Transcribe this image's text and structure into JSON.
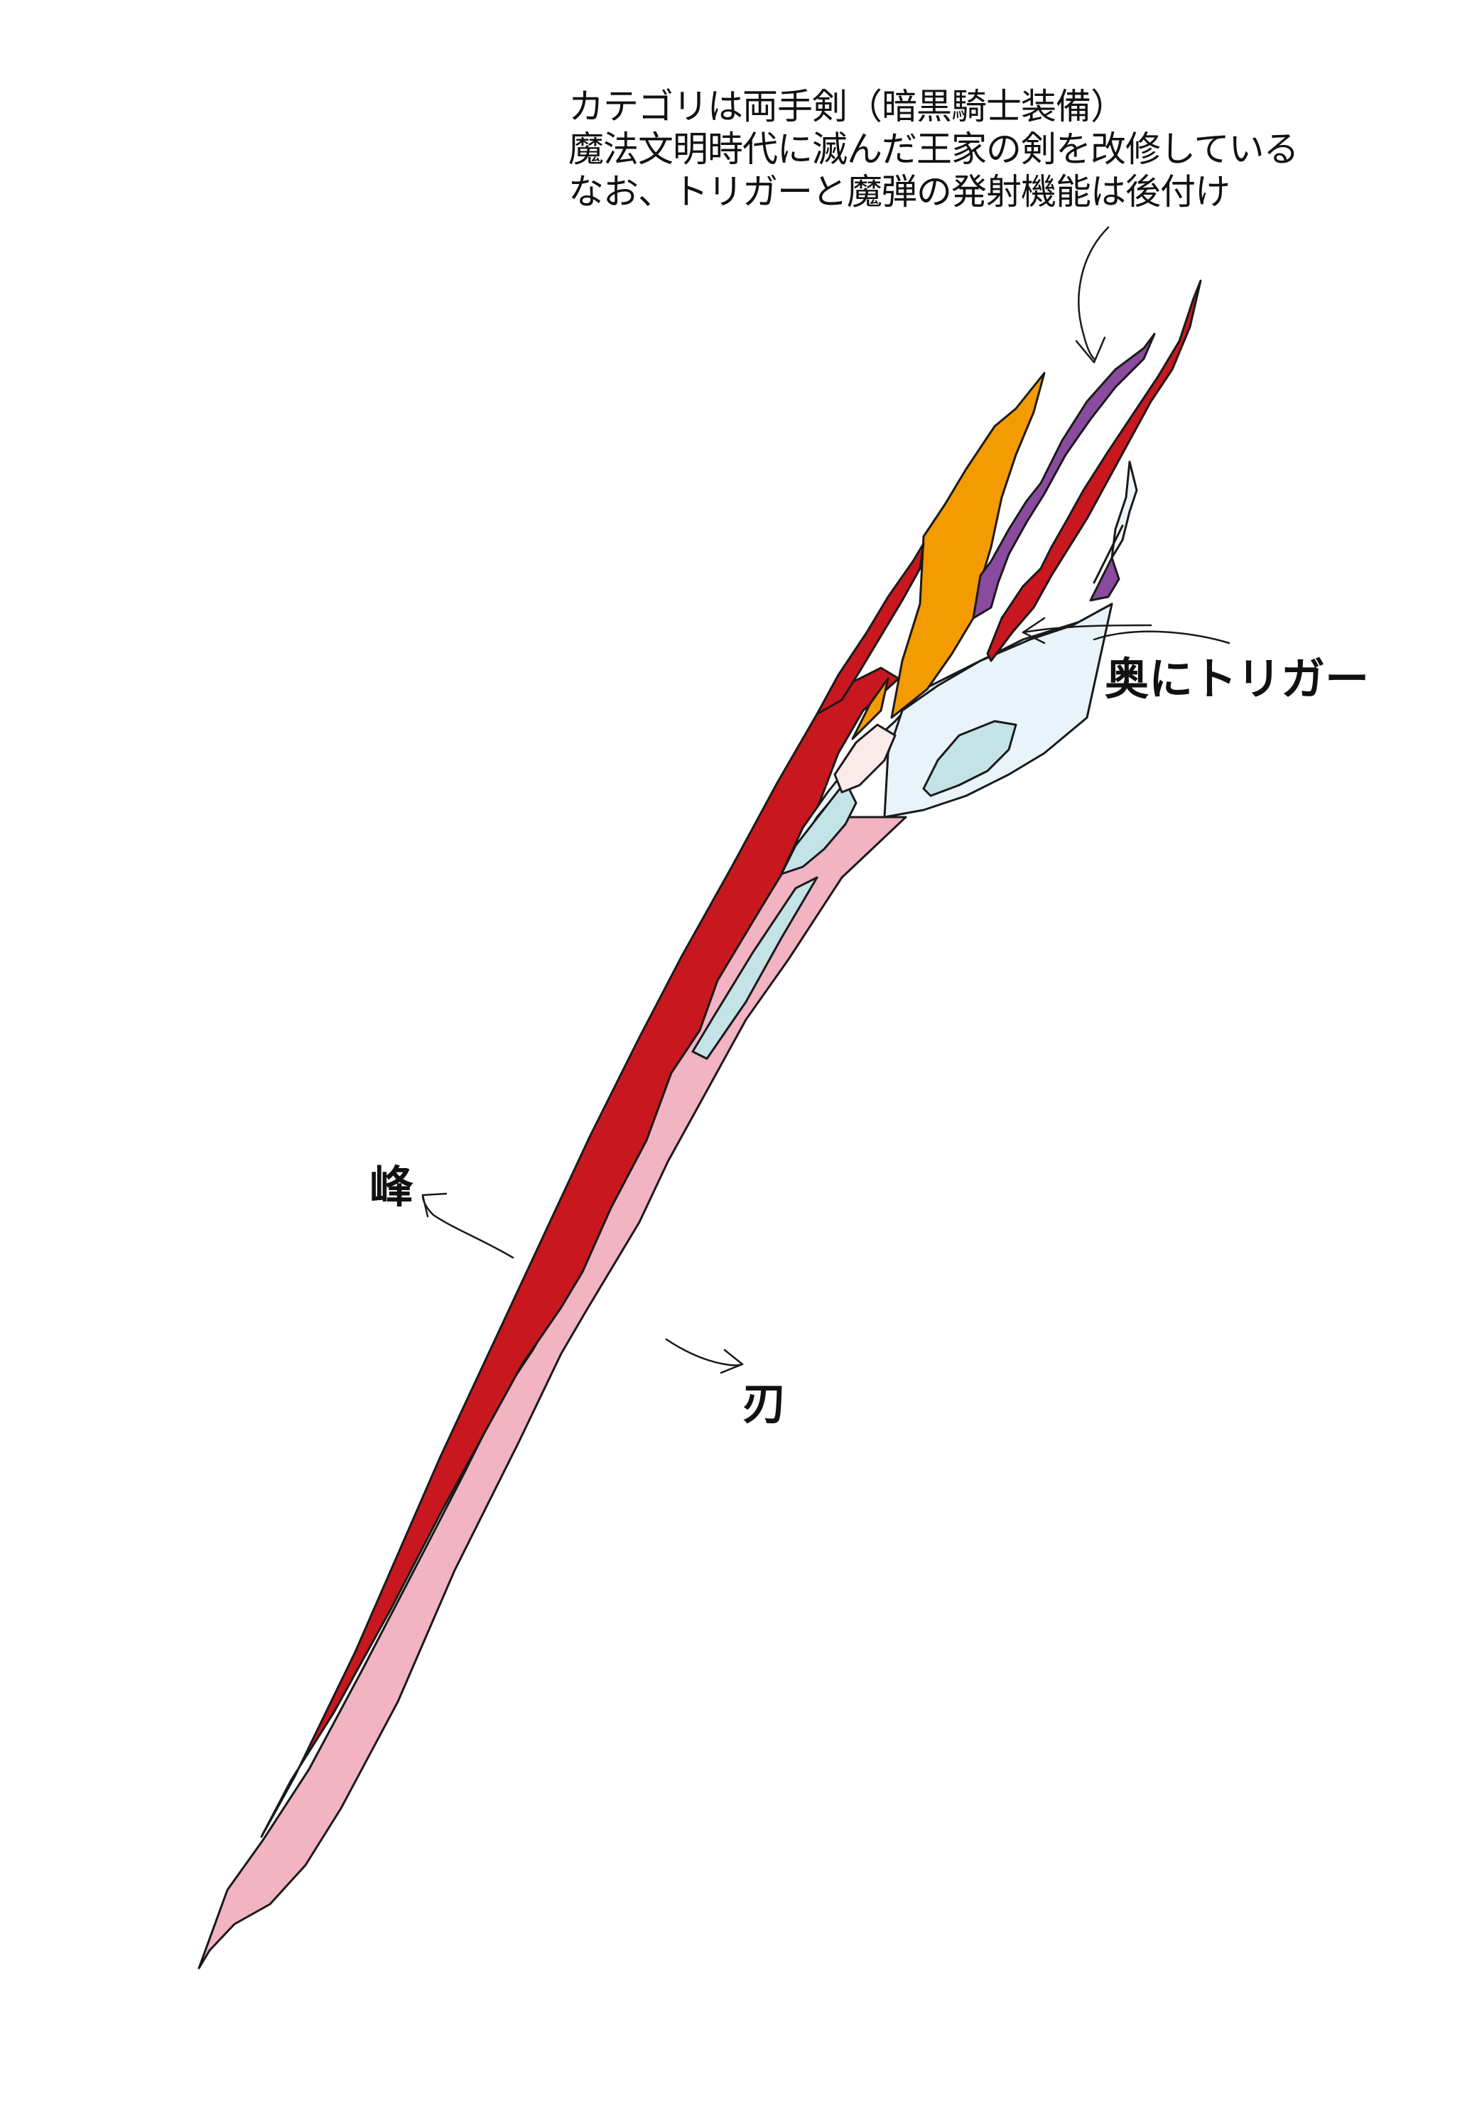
{
  "note": {
    "line1": "カテゴリは両手剣（暗黒騎士装備）",
    "line2": "魔法文明時代に滅んだ王家の剣を改修している",
    "line3": "なお、トリガーと魔弾の発射機能は後付け"
  },
  "labels": {
    "trigger": "奥にトリガー",
    "spine": "峰",
    "edge": "刃"
  },
  "colors": {
    "spine_red": "#c8171e",
    "edge_pink": "#f2b3c3",
    "gem_orange": "#f39b00",
    "accent_purple": "#8a4b9e",
    "guard_lightblue": "#e8f3fa",
    "panel_cyan": "#c4e3e6",
    "guard_blush": "#fbeaea",
    "outline": "#1a1a1a"
  }
}
